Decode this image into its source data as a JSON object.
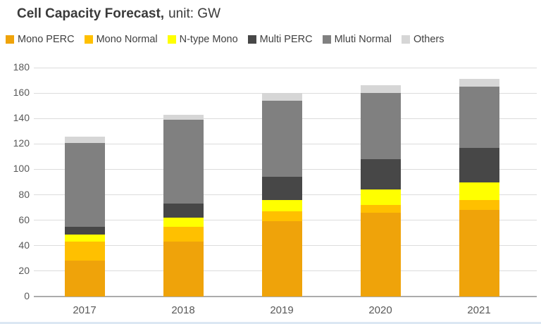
{
  "title": {
    "bold": "Cell Capacity Forecast,",
    "regular": "unit: GW"
  },
  "chart_data": {
    "type": "bar",
    "stacked": true,
    "title": "Cell Capacity Forecast, unit: GW",
    "xlabel": "",
    "ylabel": "",
    "categories": [
      "2017",
      "2018",
      "2019",
      "2020",
      "2021"
    ],
    "series": [
      {
        "name": "Mono PERC",
        "color": "#EFA30A",
        "values": [
          28,
          43,
          59,
          66,
          68
        ]
      },
      {
        "name": "Mono Normal",
        "color": "#FFC000",
        "values": [
          15,
          12,
          8,
          6,
          8
        ]
      },
      {
        "name": "N-type Mono",
        "color": "#FFFF00",
        "values": [
          6,
          7,
          9,
          12,
          14
        ]
      },
      {
        "name": "Multi PERC",
        "color": "#474747",
        "values": [
          6,
          11,
          18,
          24,
          27
        ]
      },
      {
        "name": "Mluti Normal",
        "color": "#808080",
        "values": [
          66,
          66,
          60,
          52,
          48
        ]
      },
      {
        "name": "Others",
        "color": "#D6D6D6",
        "values": [
          5,
          4,
          6,
          6,
          6
        ]
      }
    ],
    "totals": [
      126,
      143,
      160,
      166,
      171
    ],
    "ylim": [
      0,
      180
    ],
    "ytick_step": 20,
    "yticks": [
      0,
      20,
      40,
      60,
      80,
      100,
      120,
      140,
      160,
      180
    ],
    "grid": true,
    "legend_position": "top"
  }
}
